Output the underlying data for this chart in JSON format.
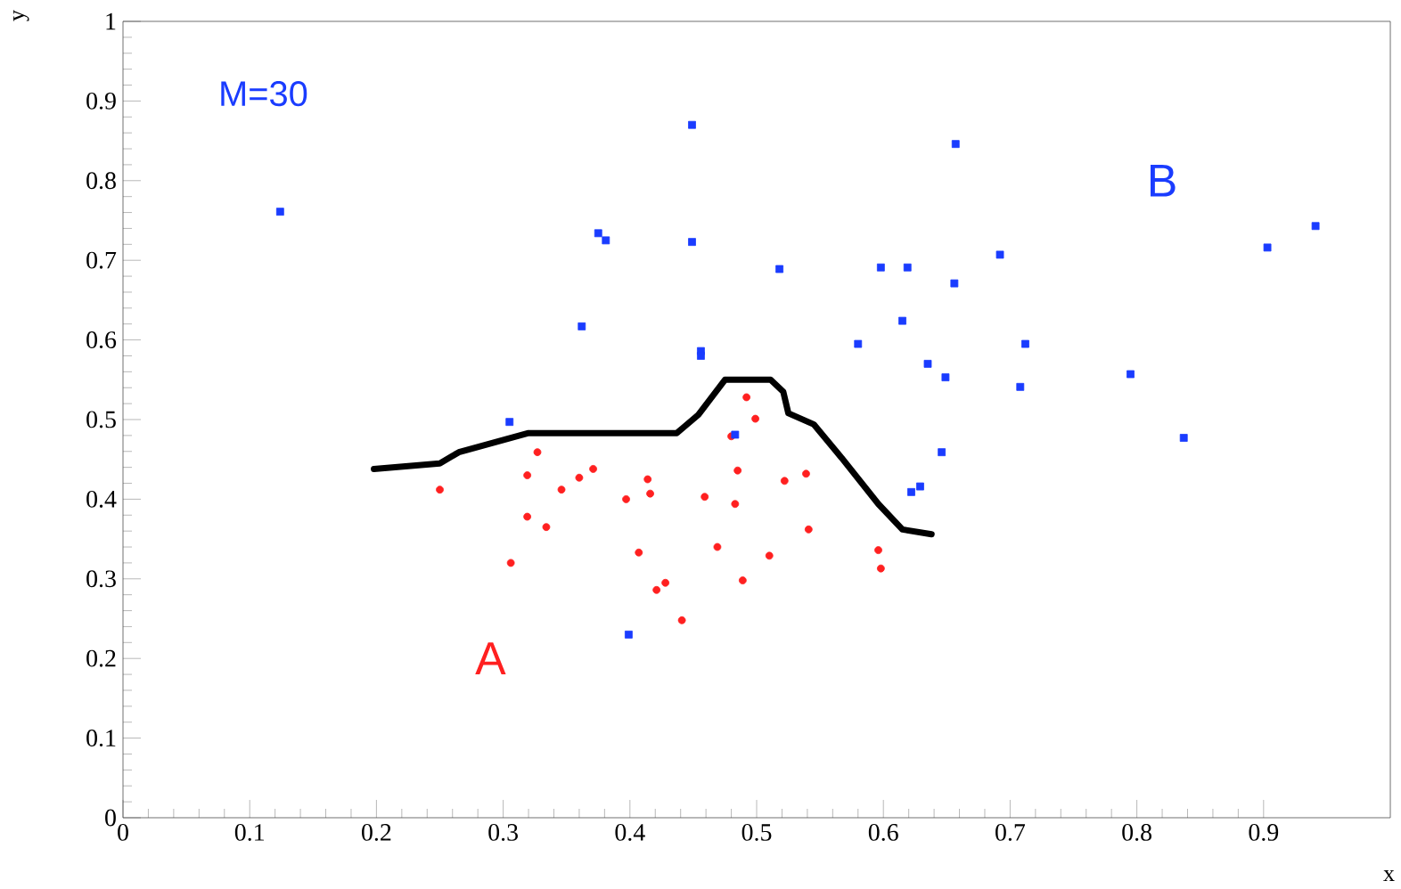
{
  "chart_data": {
    "type": "scatter",
    "xlabel": "x",
    "ylabel": "y",
    "xlim": [
      0,
      1
    ],
    "ylim": [
      0,
      1
    ],
    "xticks": [
      0,
      0.1,
      0.2,
      0.3,
      0.4,
      0.5,
      0.6,
      0.7,
      0.8,
      0.9
    ],
    "yticks": [
      0,
      0.1,
      0.2,
      0.3,
      0.4,
      0.5,
      0.6,
      0.7,
      0.8,
      0.9,
      1
    ],
    "grid": false,
    "annotations": [
      "M=30"
    ],
    "series": [
      {
        "name": "A",
        "color": "#ff2020",
        "marker": "circle",
        "x": [
          0.25,
          0.327,
          0.319,
          0.346,
          0.36,
          0.371,
          0.319,
          0.334,
          0.306,
          0.414,
          0.416,
          0.397,
          0.407,
          0.428,
          0.421,
          0.441,
          0.492,
          0.499,
          0.48,
          0.485,
          0.483,
          0.459,
          0.469,
          0.489,
          0.51,
          0.522,
          0.539,
          0.541,
          0.596,
          0.598
        ],
        "values": [
          0.412,
          0.459,
          0.43,
          0.412,
          0.427,
          0.438,
          0.378,
          0.365,
          0.32,
          0.425,
          0.407,
          0.4,
          0.333,
          0.295,
          0.286,
          0.248,
          0.528,
          0.501,
          0.479,
          0.436,
          0.394,
          0.403,
          0.34,
          0.298,
          0.329,
          0.423,
          0.432,
          0.362,
          0.336,
          0.313
        ]
      },
      {
        "name": "B",
        "color": "#1a3cff",
        "marker": "square",
        "x": [
          0.449,
          0.657,
          0.375,
          0.381,
          0.449,
          0.518,
          0.598,
          0.619,
          0.656,
          0.692,
          0.615,
          0.362,
          0.456,
          0.456,
          0.58,
          0.712,
          0.635,
          0.649,
          0.708,
          0.903,
          0.941,
          0.795,
          0.837,
          0.305,
          0.483,
          0.646,
          0.629,
          0.622,
          0.399,
          0.124
        ],
        "values": [
          0.87,
          0.846,
          0.734,
          0.725,
          0.723,
          0.689,
          0.691,
          0.691,
          0.671,
          0.707,
          0.624,
          0.617,
          0.586,
          0.58,
          0.595,
          0.595,
          0.57,
          0.553,
          0.541,
          0.716,
          0.743,
          0.557,
          0.477,
          0.497,
          0.481,
          0.459,
          0.416,
          0.409,
          0.23,
          0.761
        ]
      },
      {
        "type": "line",
        "color": "#000000",
        "marker": "none",
        "x": [
          0.198,
          0.25,
          0.265,
          0.32,
          0.437,
          0.454,
          0.475,
          0.511,
          0.521,
          0.525,
          0.545,
          0.567,
          0.596,
          0.615,
          0.638
        ],
        "values": [
          0.438,
          0.445,
          0.459,
          0.483,
          0.483,
          0.506,
          0.55,
          0.55,
          0.535,
          0.508,
          0.494,
          0.452,
          0.394,
          0.362,
          0.356
        ]
      }
    ]
  }
}
